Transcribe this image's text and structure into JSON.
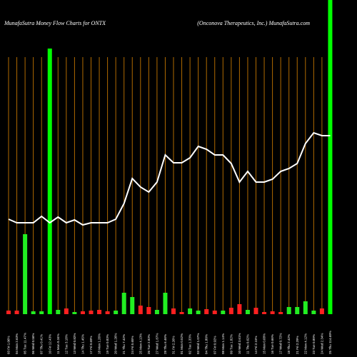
{
  "chart_data": {
    "type": "money-flow",
    "title": "MunafaSutra  Money Flow  Charts for ONTX",
    "subtitle": "(Onconova  Therapeutics,  Inc.) MunafaSutra.com",
    "categories": [
      "03 Fri 1.06%",
      "04 Mon 2.63%",
      "05 Tue 11.47%",
      "06 Wed 0.56%",
      "07 Thu 0.41%",
      "10 Fri 12.43%",
      "11 Mon 0.34%",
      "12 Tue 3.18%",
      "13 Wed 0.82%",
      "14 Thu 1.45%",
      "17 Fri 0.69%",
      "18 Mon 1.26%",
      "19 Tue 0.83%",
      "20 Wed 1.26%",
      "21 Thu 7.42%",
      "24 Fri 5.65%",
      "25 Mon 4.13%",
      "26 Tue 2.83%",
      "27 Wed 1.87%",
      "28 Thu 6.46%",
      "31 Fri 2.26%",
      "01 Mon 0.52%",
      "02 Tue 1.33%",
      "03 Wed 1.07%",
      "04 Thu 1.80%",
      "07 Fri 0.92%",
      "08 Mon 1.14%",
      "09 Tue 1.82%",
      "10 Wed 3.61%",
      "11 Thu 0.62%",
      "14 Fri 2.15%",
      "15 Mon 0.68%",
      "16 Tue 0.66%",
      "17 Wed 0.72%",
      "18 Thu 2.42%",
      "21 Fri 2.29%",
      "22 Mon 4.12%",
      "23 Tue 0.89%",
      "24 Wed 2.34%",
      "25 Thu 114.69%"
    ],
    "volume": {
      "values": [
        5,
        5,
        112,
        4,
        4,
        372,
        6,
        8,
        3,
        4,
        5,
        6,
        4,
        5,
        30,
        24,
        12,
        10,
        6,
        30,
        8,
        3,
        8,
        5,
        7,
        5,
        5,
        9,
        14,
        6,
        9,
        3,
        4,
        3,
        10,
        10,
        18,
        5,
        8,
        440
      ],
      "colors": [
        "#ff2020",
        "#ff2020",
        "#22ee22",
        "#22ee22",
        "#22ee22",
        "#00ff00",
        "#22ee22",
        "#ff2020",
        "#22ee22",
        "#ff2020",
        "#ff2020",
        "#ff2020",
        "#ff2020",
        "#22ee22",
        "#22ee22",
        "#22ee22",
        "#ff2020",
        "#ff2020",
        "#22ee22",
        "#22ee22",
        "#ff2020",
        "#ff2020",
        "#22ee22",
        "#22ee22",
        "#ff2020",
        "#ff2020",
        "#22ee22",
        "#ff2020",
        "#ff2020",
        "#22ee22",
        "#ff2020",
        "#ff2020",
        "#ff2020",
        "#ff2020",
        "#22ee22",
        "#22ee22",
        "#22ee22",
        "#22ee22",
        "#ff2020",
        "#00ff00"
      ]
    },
    "line": {
      "color": "#ffffff",
      "values": [
        133,
        128,
        128,
        128,
        137,
        128,
        136,
        128,
        132,
        125,
        128,
        128,
        128,
        133,
        155,
        190,
        178,
        171,
        185,
        223,
        212,
        212,
        219,
        235,
        231,
        223,
        223,
        211,
        185,
        200,
        185,
        185,
        189,
        200,
        204,
        211,
        239,
        254,
        250,
        250
      ]
    },
    "ylim": [
      0,
      440
    ],
    "grid_color": "#b06a00"
  }
}
